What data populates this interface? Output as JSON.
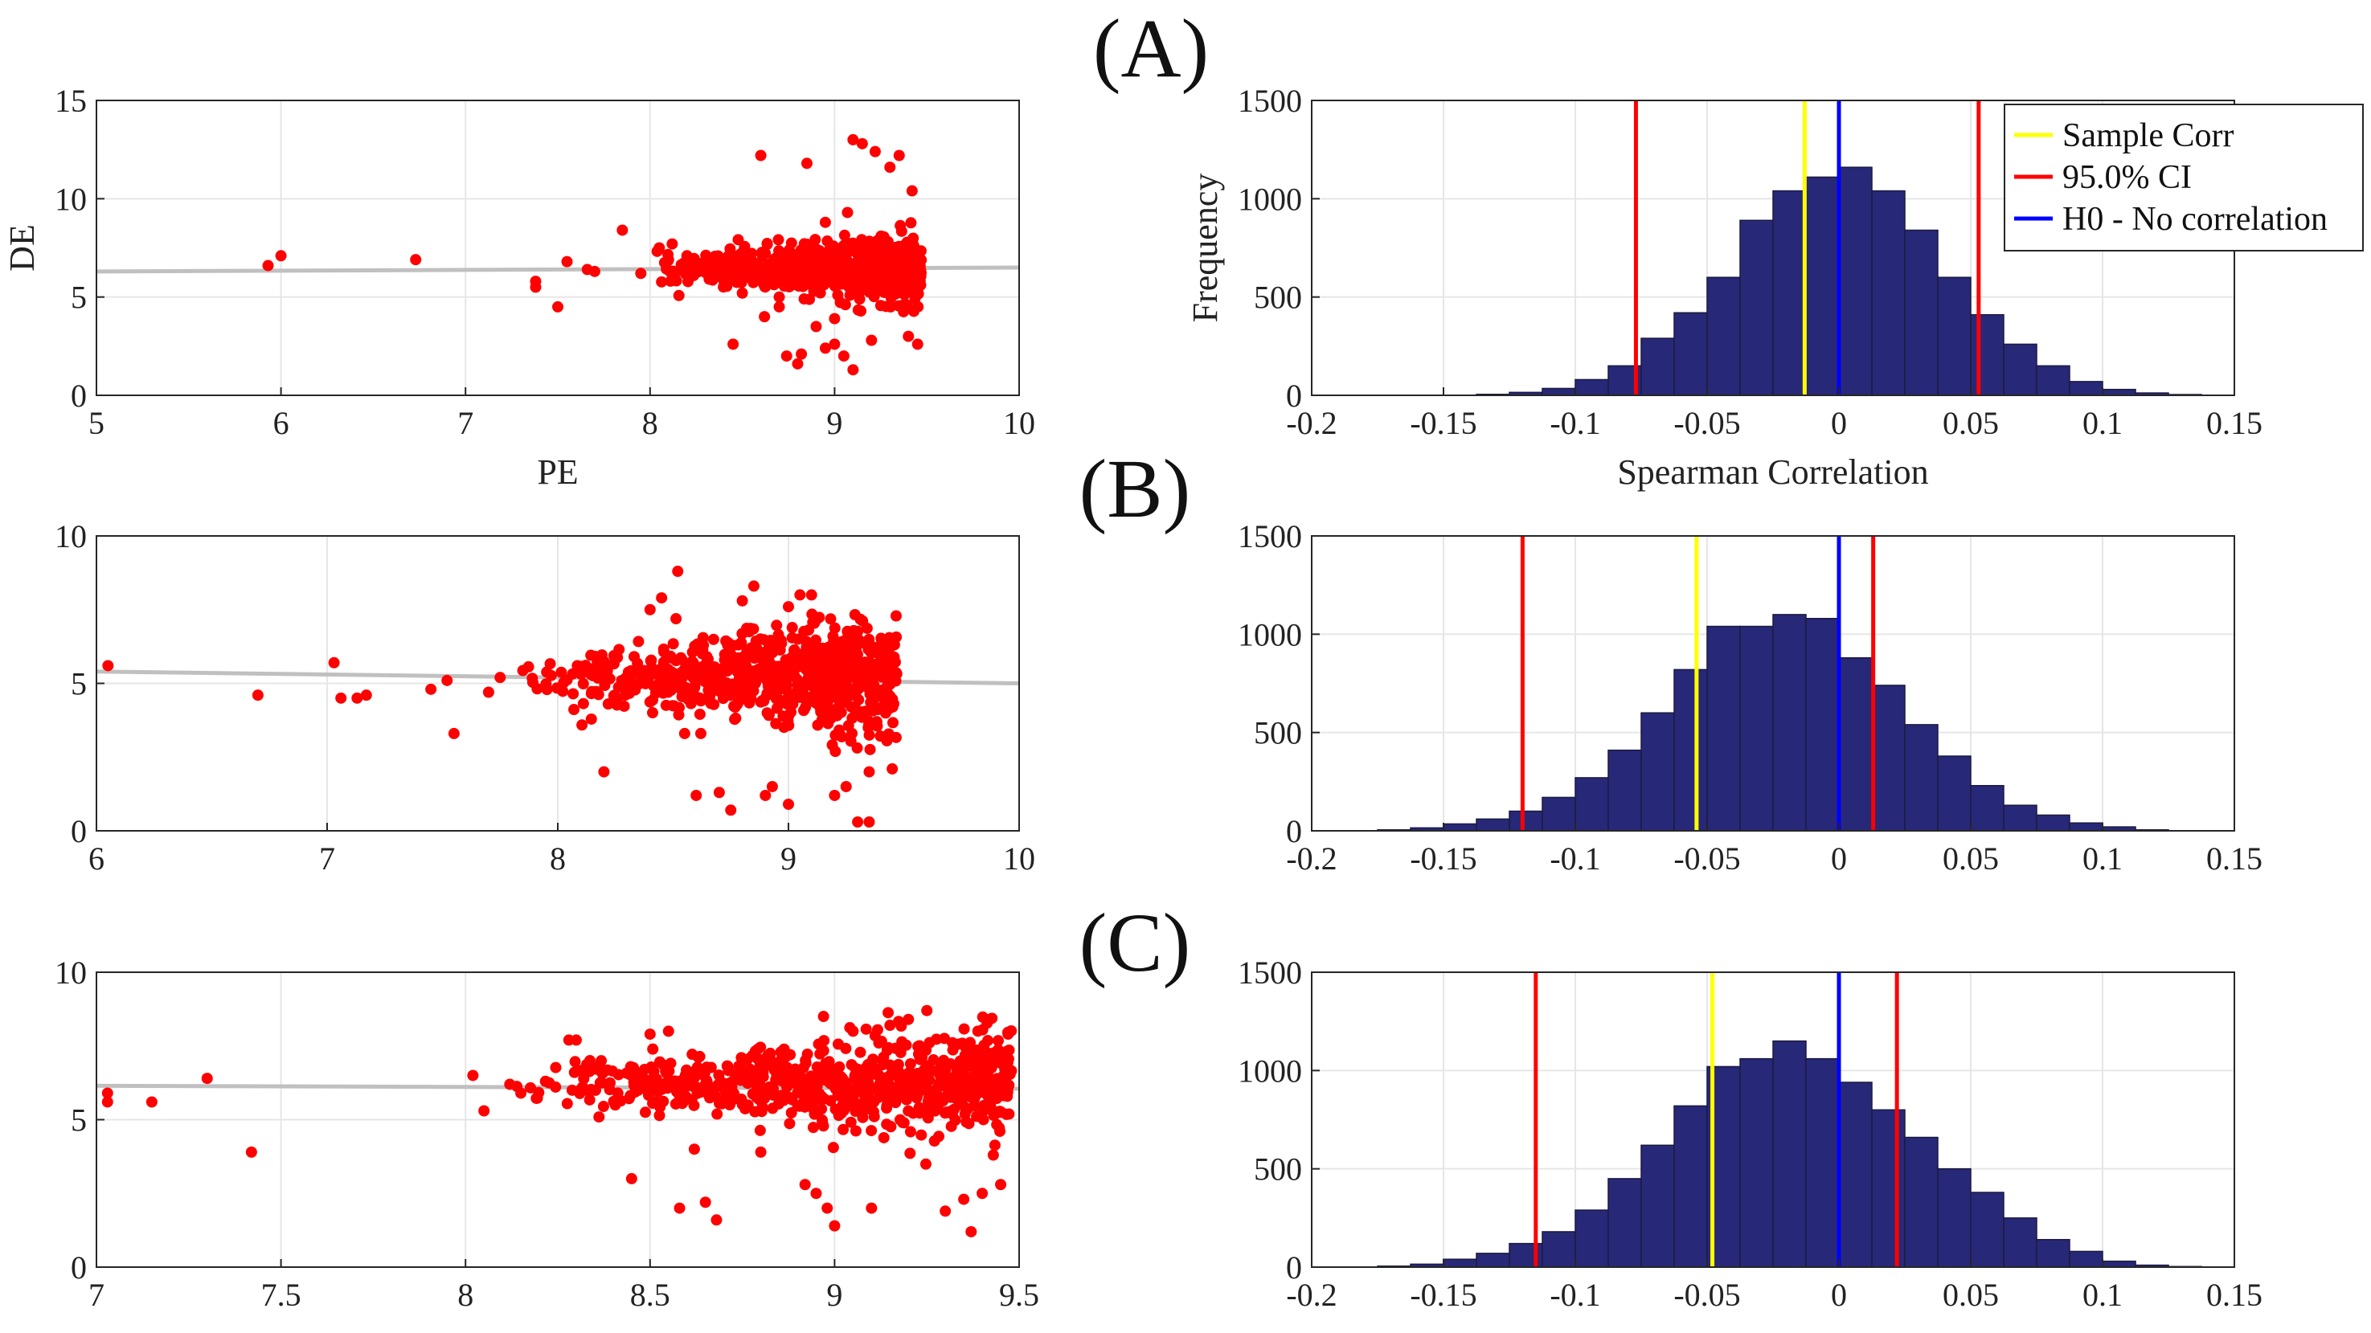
{
  "panel_labels": [
    "(A)",
    "(B)",
    "(C)"
  ],
  "colors": {
    "scatter_points": "#ff0000",
    "fit_line": "#c0c0c0",
    "histogram_bars": "#282878",
    "sample_corr": "#ffff00",
    "ci": "#ff0000",
    "h0": "#0000ff",
    "grid": "#e6e6e6"
  },
  "legend": {
    "placement": "top-right",
    "entries": [
      {
        "label": "Sample Corr",
        "color": "#ffff00"
      },
      {
        "label": "95.0% CI",
        "color": "#ff0000"
      },
      {
        "label": "H0 - No correlation",
        "color": "#0000ff"
      }
    ]
  },
  "chart_data": [
    {
      "id": "scatter_a",
      "type": "scatter",
      "xlabel": "PE",
      "ylabel": "DE",
      "xlim": [
        5,
        10
      ],
      "ylim": [
        0,
        15
      ],
      "xticks": [
        "5",
        "6",
        "7",
        "8",
        "9",
        "10"
      ],
      "yticks": [
        "0",
        "5",
        "10",
        "15"
      ],
      "grid": true,
      "fit_line": {
        "x": [
          5,
          10
        ],
        "y": [
          6.3,
          6.5
        ]
      },
      "points": [
        [
          5.93,
          6.6
        ],
        [
          6.0,
          7.1
        ],
        [
          6.73,
          6.9
        ],
        [
          7.38,
          5.8
        ],
        [
          7.38,
          5.5
        ],
        [
          7.5,
          4.5
        ],
        [
          7.55,
          6.8
        ],
        [
          7.66,
          6.4
        ],
        [
          7.7,
          6.3
        ],
        [
          7.85,
          8.4
        ],
        [
          7.95,
          6.2
        ],
        [
          8.05,
          7.5
        ],
        [
          8.1,
          6.9
        ],
        [
          8.12,
          7.7
        ],
        [
          8.2,
          7.1
        ],
        [
          8.45,
          2.6
        ],
        [
          8.5,
          5.2
        ],
        [
          8.6,
          12.2
        ],
        [
          8.62,
          4.0
        ],
        [
          8.7,
          5.0
        ],
        [
          8.74,
          2.0
        ],
        [
          8.8,
          1.6
        ],
        [
          8.82,
          2.1
        ],
        [
          8.85,
          11.8
        ],
        [
          8.9,
          3.5
        ],
        [
          8.95,
          2.4
        ],
        [
          9.0,
          2.6
        ],
        [
          9.05,
          2.0
        ],
        [
          9.07,
          9.3
        ],
        [
          9.1,
          1.3
        ],
        [
          9.1,
          13.0
        ],
        [
          9.15,
          12.8
        ],
        [
          9.2,
          2.8
        ],
        [
          9.22,
          12.4
        ],
        [
          9.3,
          11.6
        ],
        [
          9.35,
          12.2
        ],
        [
          9.4,
          3.0
        ],
        [
          9.42,
          10.4
        ],
        [
          9.45,
          2.6
        ],
        [
          9.0,
          3.9
        ],
        [
          8.95,
          8.8
        ],
        [
          8.7,
          4.5
        ]
      ],
      "cloud": {
        "x_range": [
          8.0,
          9.47
        ],
        "y_center": 6.4,
        "y_spread": 0.65,
        "count": 700
      }
    },
    {
      "id": "hist_a",
      "type": "bar",
      "xlabel": "Spearman Correlation",
      "ylabel": "Frequency",
      "xlim": [
        -0.2,
        0.15
      ],
      "ylim": [
        0,
        1500
      ],
      "xticks": [
        "-0.2",
        "-0.15",
        "-0.1",
        "-0.05",
        "0",
        "0.05",
        "0.1",
        "0.15"
      ],
      "yticks": [
        "0",
        "500",
        "1000",
        "1500"
      ],
      "grid": true,
      "bin_start": -0.1375,
      "bin_width": 0.0125,
      "counts": [
        5,
        15,
        35,
        80,
        150,
        290,
        420,
        600,
        890,
        1040,
        1110,
        1160,
        1040,
        840,
        600,
        410,
        260,
        150,
        70,
        30,
        12,
        4
      ],
      "sample_corr": -0.013,
      "ci": [
        -0.077,
        0.053
      ],
      "h0": 0
    },
    {
      "id": "scatter_b",
      "type": "scatter",
      "xlabel": "",
      "ylabel": "",
      "xlim": [
        6,
        10
      ],
      "ylim": [
        0,
        10
      ],
      "xticks": [
        "6",
        "7",
        "8",
        "9",
        "10"
      ],
      "yticks": [
        "0",
        "5",
        "10"
      ],
      "grid": true,
      "fit_line": {
        "x": [
          6,
          10
        ],
        "y": [
          5.4,
          5.0
        ]
      },
      "points": [
        [
          6.05,
          5.6
        ],
        [
          6.7,
          4.6
        ],
        [
          7.03,
          5.7
        ],
        [
          7.06,
          4.5
        ],
        [
          7.13,
          4.5
        ],
        [
          7.17,
          4.6
        ],
        [
          7.45,
          4.8
        ],
        [
          7.52,
          5.1
        ],
        [
          7.55,
          3.3
        ],
        [
          7.7,
          4.7
        ],
        [
          7.75,
          5.2
        ],
        [
          8.2,
          2.0
        ],
        [
          8.52,
          8.8
        ],
        [
          8.55,
          3.3
        ],
        [
          8.6,
          1.2
        ],
        [
          8.62,
          3.3
        ],
        [
          8.7,
          1.3
        ],
        [
          8.75,
          0.7
        ],
        [
          8.9,
          1.2
        ],
        [
          8.93,
          1.5
        ],
        [
          9.0,
          0.9
        ],
        [
          9.05,
          8.0
        ],
        [
          9.1,
          8.0
        ],
        [
          9.2,
          1.2
        ],
        [
          9.25,
          1.5
        ],
        [
          9.3,
          0.3
        ],
        [
          9.35,
          0.3
        ],
        [
          9.35,
          2.0
        ],
        [
          9.45,
          2.1
        ],
        [
          8.45,
          7.9
        ],
        [
          8.85,
          8.3
        ],
        [
          8.4,
          7.5
        ],
        [
          9.0,
          7.6
        ],
        [
          8.8,
          7.8
        ]
      ],
      "cloud": {
        "x_range": [
          7.8,
          9.47
        ],
        "y_center": 5.2,
        "y_spread": 0.75,
        "count": 750
      }
    },
    {
      "id": "hist_b",
      "type": "bar",
      "xlabel": "",
      "ylabel": "",
      "xlim": [
        -0.2,
        0.15
      ],
      "ylim": [
        0,
        1500
      ],
      "xticks": [
        "-0.2",
        "-0.15",
        "-0.1",
        "-0.05",
        "0",
        "0.05",
        "0.1",
        "0.15"
      ],
      "yticks": [
        "0",
        "500",
        "1000",
        "1500"
      ],
      "grid": true,
      "bin_start": -0.175,
      "bin_width": 0.0125,
      "counts": [
        5,
        15,
        35,
        60,
        100,
        170,
        270,
        410,
        600,
        820,
        1040,
        1040,
        1100,
        1080,
        880,
        740,
        540,
        380,
        230,
        130,
        80,
        40,
        20,
        5
      ],
      "sample_corr": -0.054,
      "ci": [
        -0.12,
        0.013
      ],
      "h0": 0
    },
    {
      "id": "scatter_c",
      "type": "scatter",
      "xlabel": "",
      "ylabel": "",
      "xlim": [
        7,
        9.5
      ],
      "ylim": [
        0,
        10
      ],
      "xticks": [
        "7",
        "7.5",
        "8",
        "8.5",
        "9",
        "9.5"
      ],
      "yticks": [
        "0",
        "5",
        "10"
      ],
      "grid": true,
      "fit_line": {
        "x": [
          7,
          9.5
        ],
        "y": [
          6.15,
          6.05
        ]
      },
      "points": [
        [
          7.03,
          5.9
        ],
        [
          7.03,
          5.6
        ],
        [
          7.15,
          5.6
        ],
        [
          7.3,
          6.4
        ],
        [
          7.42,
          3.9
        ],
        [
          8.02,
          6.5
        ],
        [
          8.05,
          5.3
        ],
        [
          8.12,
          6.2
        ],
        [
          8.15,
          5.9
        ],
        [
          8.28,
          7.7
        ],
        [
          8.3,
          7.7
        ],
        [
          8.45,
          3.0
        ],
        [
          8.5,
          7.9
        ],
        [
          8.55,
          8.0
        ],
        [
          8.58,
          2.0
        ],
        [
          8.62,
          4.0
        ],
        [
          8.65,
          2.2
        ],
        [
          8.68,
          1.6
        ],
        [
          8.8,
          3.9
        ],
        [
          8.92,
          2.8
        ],
        [
          8.95,
          2.5
        ],
        [
          8.97,
          8.5
        ],
        [
          8.98,
          2.0
        ],
        [
          9.0,
          1.4
        ],
        [
          9.05,
          8.0
        ],
        [
          9.1,
          2.0
        ],
        [
          9.15,
          8.2
        ],
        [
          9.2,
          8.4
        ],
        [
          9.25,
          8.7
        ],
        [
          9.3,
          1.9
        ],
        [
          9.35,
          2.3
        ],
        [
          9.37,
          1.2
        ],
        [
          9.4,
          2.5
        ],
        [
          9.43,
          3.8
        ],
        [
          9.45,
          2.8
        ],
        [
          9.47,
          7.9
        ],
        [
          9.42,
          8.4
        ]
      ],
      "cloud": {
        "x_range": [
          8.1,
          9.48
        ],
        "y_center": 6.2,
        "y_spread": 0.7,
        "count": 750
      }
    },
    {
      "id": "hist_c",
      "type": "bar",
      "xlabel": "",
      "ylabel": "",
      "xlim": [
        -0.2,
        0.15
      ],
      "ylim": [
        0,
        1500
      ],
      "xticks": [
        "-0.2",
        "-0.15",
        "-0.1",
        "-0.05",
        "0",
        "0.05",
        "0.1",
        "0.15"
      ],
      "yticks": [
        "0",
        "500",
        "1000",
        "1500"
      ],
      "grid": true,
      "bin_start": -0.175,
      "bin_width": 0.0125,
      "counts": [
        5,
        15,
        40,
        70,
        120,
        180,
        290,
        450,
        620,
        820,
        1020,
        1060,
        1150,
        1060,
        940,
        800,
        660,
        500,
        380,
        250,
        140,
        80,
        30,
        10,
        3
      ],
      "sample_corr": -0.048,
      "ci": [
        -0.115,
        0.022
      ],
      "h0": 0
    }
  ]
}
